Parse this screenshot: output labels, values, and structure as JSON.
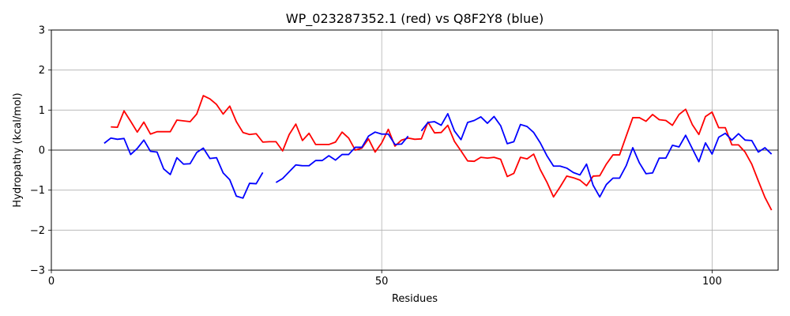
{
  "chart_data": {
    "type": "line",
    "title": "WP_023287352.1 (red) vs Q8F2Y8 (blue)",
    "xlabel": "Residues",
    "ylabel": "Hydropathy (kcal/mol)",
    "xlim": [
      0,
      110
    ],
    "ylim": [
      -3,
      3
    ],
    "xticks": [
      0,
      50,
      100
    ],
    "yticks": [
      -3,
      -2,
      -1,
      0,
      1,
      2,
      3
    ],
    "grid": true,
    "zero_line": true,
    "series": [
      {
        "color": "#ff0000",
        "segments": [
          [
            [
              9,
              0.58
            ],
            [
              10,
              0.57
            ],
            [
              11,
              0.98
            ],
            [
              12,
              0.72
            ],
            [
              13,
              0.45
            ],
            [
              14,
              0.7
            ],
            [
              15,
              0.4
            ],
            [
              16,
              0.46
            ],
            [
              17,
              0.46
            ],
            [
              18,
              0.46
            ],
            [
              19,
              0.75
            ],
            [
              20,
              0.73
            ],
            [
              21,
              0.71
            ],
            [
              22,
              0.9
            ],
            [
              23,
              1.36
            ],
            [
              24,
              1.28
            ],
            [
              25,
              1.14
            ],
            [
              26,
              0.9
            ],
            [
              27,
              1.1
            ],
            [
              28,
              0.71
            ],
            [
              29,
              0.44
            ],
            [
              30,
              0.39
            ],
            [
              31,
              0.41
            ],
            [
              32,
              0.2
            ],
            [
              33,
              0.21
            ],
            [
              34,
              0.21
            ],
            [
              35,
              -0.02
            ],
            [
              36,
              0.39
            ],
            [
              37,
              0.65
            ],
            [
              38,
              0.24
            ],
            [
              39,
              0.42
            ],
            [
              40,
              0.14
            ],
            [
              41,
              0.14
            ],
            [
              42,
              0.14
            ],
            [
              43,
              0.2
            ],
            [
              44,
              0.45
            ],
            [
              45,
              0.3
            ],
            [
              46,
              0.0
            ],
            [
              47,
              0.05
            ],
            [
              48,
              0.28
            ],
            [
              49,
              -0.05
            ],
            [
              50,
              0.18
            ],
            [
              51,
              0.52
            ],
            [
              52,
              0.1
            ],
            [
              53,
              0.25
            ],
            [
              54,
              0.3
            ],
            [
              55,
              0.27
            ],
            [
              56,
              0.28
            ],
            [
              57,
              0.7
            ],
            [
              58,
              0.43
            ],
            [
              59,
              0.44
            ],
            [
              60,
              0.62
            ],
            [
              61,
              0.22
            ],
            [
              62,
              -0.02
            ],
            [
              63,
              -0.27
            ],
            [
              64,
              -0.28
            ],
            [
              65,
              -0.18
            ],
            [
              66,
              -0.2
            ],
            [
              67,
              -0.18
            ],
            [
              68,
              -0.23
            ],
            [
              69,
              -0.66
            ],
            [
              70,
              -0.58
            ],
            [
              71,
              -0.18
            ],
            [
              72,
              -0.22
            ],
            [
              73,
              -0.1
            ],
            [
              74,
              -0.49
            ],
            [
              75,
              -0.8
            ],
            [
              76,
              -1.17
            ],
            [
              77,
              -0.92
            ],
            [
              78,
              -0.65
            ],
            [
              79,
              -0.69
            ],
            [
              80,
              -0.75
            ],
            [
              81,
              -0.89
            ],
            [
              82,
              -0.65
            ],
            [
              83,
              -0.64
            ],
            [
              84,
              -0.35
            ],
            [
              85,
              -0.12
            ],
            [
              86,
              -0.12
            ],
            [
              87,
              0.35
            ],
            [
              88,
              0.81
            ],
            [
              89,
              0.81
            ],
            [
              90,
              0.72
            ],
            [
              91,
              0.89
            ],
            [
              92,
              0.76
            ],
            [
              93,
              0.74
            ],
            [
              94,
              0.62
            ],
            [
              95,
              0.89
            ],
            [
              96,
              1.02
            ],
            [
              97,
              0.64
            ],
            [
              98,
              0.39
            ],
            [
              99,
              0.84
            ],
            [
              100,
              0.95
            ],
            [
              101,
              0.56
            ],
            [
              102,
              0.56
            ],
            [
              103,
              0.13
            ],
            [
              104,
              0.13
            ],
            [
              105,
              -0.05
            ],
            [
              106,
              -0.35
            ],
            [
              107,
              -0.77
            ],
            [
              108,
              -1.18
            ],
            [
              109,
              -1.5
            ]
          ]
        ]
      },
      {
        "color": "#0000ff",
        "segments": [
          [
            [
              8,
              0.17
            ],
            [
              9,
              0.3
            ],
            [
              10,
              0.27
            ],
            [
              11,
              0.29
            ],
            [
              12,
              -0.11
            ],
            [
              13,
              0.04
            ],
            [
              14,
              0.25
            ],
            [
              15,
              -0.03
            ],
            [
              16,
              -0.05
            ],
            [
              17,
              -0.47
            ],
            [
              18,
              -0.61
            ],
            [
              19,
              -0.19
            ],
            [
              20,
              -0.35
            ],
            [
              21,
              -0.34
            ],
            [
              22,
              -0.06
            ],
            [
              23,
              0.05
            ],
            [
              24,
              -0.21
            ],
            [
              25,
              -0.19
            ],
            [
              26,
              -0.57
            ],
            [
              27,
              -0.74
            ],
            [
              28,
              -1.15
            ],
            [
              29,
              -1.2
            ],
            [
              30,
              -0.83
            ],
            [
              31,
              -0.84
            ],
            [
              32,
              -0.56
            ]
          ],
          [
            [
              34,
              -0.81
            ],
            [
              35,
              -0.71
            ],
            [
              36,
              -0.54
            ],
            [
              37,
              -0.37
            ],
            [
              38,
              -0.39
            ],
            [
              39,
              -0.39
            ],
            [
              40,
              -0.26
            ],
            [
              41,
              -0.26
            ],
            [
              42,
              -0.14
            ],
            [
              43,
              -0.25
            ],
            [
              44,
              -0.11
            ],
            [
              45,
              -0.11
            ],
            [
              46,
              0.07
            ],
            [
              47,
              0.07
            ],
            [
              48,
              0.35
            ],
            [
              49,
              0.45
            ],
            [
              50,
              0.4
            ],
            [
              51,
              0.4
            ],
            [
              52,
              0.14
            ],
            [
              53,
              0.15
            ],
            [
              54,
              0.35
            ]
          ],
          [
            [
              56,
              0.48
            ],
            [
              57,
              0.69
            ],
            [
              58,
              0.71
            ],
            [
              59,
              0.62
            ],
            [
              60,
              0.91
            ],
            [
              61,
              0.48
            ],
            [
              62,
              0.26
            ],
            [
              63,
              0.69
            ],
            [
              64,
              0.74
            ],
            [
              65,
              0.83
            ],
            [
              66,
              0.67
            ],
            [
              67,
              0.84
            ],
            [
              68,
              0.61
            ],
            [
              69,
              0.16
            ],
            [
              70,
              0.21
            ],
            [
              71,
              0.64
            ],
            [
              72,
              0.59
            ],
            [
              73,
              0.44
            ],
            [
              74,
              0.18
            ],
            [
              75,
              -0.14
            ],
            [
              76,
              -0.4
            ],
            [
              77,
              -0.4
            ],
            [
              78,
              -0.45
            ],
            [
              79,
              -0.56
            ],
            [
              80,
              -0.62
            ],
            [
              81,
              -0.35
            ],
            [
              82,
              -0.88
            ],
            [
              83,
              -1.17
            ],
            [
              84,
              -0.86
            ],
            [
              85,
              -0.7
            ],
            [
              86,
              -0.7
            ],
            [
              87,
              -0.39
            ],
            [
              88,
              0.06
            ],
            [
              89,
              -0.32
            ],
            [
              90,
              -0.59
            ],
            [
              91,
              -0.57
            ],
            [
              92,
              -0.2
            ],
            [
              93,
              -0.2
            ],
            [
              94,
              0.12
            ],
            [
              95,
              0.08
            ],
            [
              96,
              0.37
            ],
            [
              97,
              0.04
            ],
            [
              98,
              -0.29
            ],
            [
              99,
              0.18
            ],
            [
              100,
              -0.1
            ],
            [
              101,
              0.32
            ],
            [
              102,
              0.42
            ],
            [
              103,
              0.25
            ],
            [
              104,
              0.41
            ],
            [
              105,
              0.25
            ],
            [
              106,
              0.24
            ],
            [
              107,
              -0.05
            ],
            [
              108,
              0.06
            ],
            [
              109,
              -0.1
            ]
          ]
        ]
      }
    ]
  }
}
